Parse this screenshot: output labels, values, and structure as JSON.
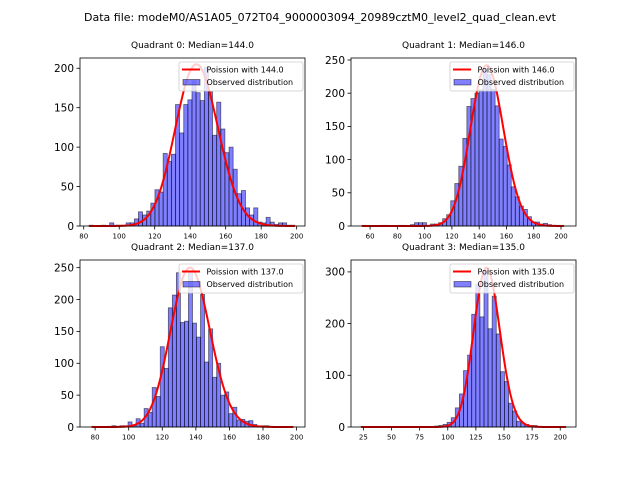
{
  "figure": {
    "title": "Data file: modeM0/AS1A05_072T04_9000003094_20989cztM0_level2_quad_clean.evt"
  },
  "chart_data": [
    {
      "type": "bar",
      "title": "Quadrant 0: Median=144.0",
      "median": 144.0,
      "xlabel": "",
      "ylabel": "",
      "xlim": [
        77.9,
        204.7
      ],
      "ylim": [
        0,
        213
      ],
      "xticks": [
        80,
        100,
        120,
        140,
        160,
        180,
        200
      ],
      "yticks": [
        0,
        50,
        100,
        150,
        200
      ],
      "grid": false,
      "legend_position": "top-right",
      "series": [
        {
          "name": "Observed distribution",
          "kind": "histogram",
          "color": "#0000ff",
          "bin_start": 83.0,
          "bin_width": 2.32,
          "counts": [
            1,
            0,
            0,
            1,
            0,
            4,
            1,
            1,
            1,
            4,
            4,
            9,
            18,
            14,
            19,
            29,
            46,
            43,
            92,
            82,
            91,
            154,
            118,
            154,
            160,
            184,
            169,
            159,
            201,
            170,
            115,
            157,
            123,
            93,
            100,
            72,
            41,
            45,
            23,
            14,
            23,
            5,
            4,
            11,
            5,
            2,
            4,
            4,
            1,
            1
          ]
        },
        {
          "name": "Poission with 144.0",
          "kind": "poisson-curve",
          "color": "#ff0000",
          "mean": 144.0,
          "peak": 205,
          "x_range": [
            83,
            199
          ]
        }
      ]
    },
    {
      "type": "bar",
      "title": "Quadrant 1: Median=146.0",
      "median": 146.0,
      "xlabel": "",
      "ylabel": "",
      "xlim": [
        46,
        211
      ],
      "ylim": [
        0,
        253
      ],
      "xticks": [
        60,
        80,
        100,
        120,
        140,
        160,
        180,
        200
      ],
      "yticks": [
        0,
        50,
        100,
        150,
        200,
        250
      ],
      "grid": false,
      "legend_position": "top-right",
      "series": [
        {
          "name": "Observed distribution",
          "kind": "histogram",
          "color": "#0000ff",
          "bin_start": 54.0,
          "bin_width": 2.96,
          "counts": [
            1,
            0,
            0,
            0,
            0,
            1,
            0,
            0,
            0,
            1,
            1,
            0,
            2,
            5,
            5,
            5,
            1,
            3,
            3,
            5,
            11,
            17,
            38,
            64,
            90,
            132,
            180,
            192,
            200,
            205,
            237,
            228,
            206,
            181,
            131,
            120,
            92,
            59,
            44,
            30,
            25,
            14,
            6,
            6,
            3,
            4,
            2,
            1,
            1,
            1
          ]
        },
        {
          "name": "Poission with 146.0",
          "kind": "poisson-curve",
          "color": "#ff0000",
          "mean": 146.0,
          "peak": 242,
          "x_range": [
            54,
            202
          ]
        }
      ]
    },
    {
      "type": "bar",
      "title": "Quadrant 2: Median=137.0",
      "median": 137.0,
      "xlabel": "",
      "ylabel": "",
      "xlim": [
        71,
        205
      ],
      "ylim": [
        0,
        262
      ],
      "xticks": [
        80,
        100,
        120,
        140,
        160,
        180,
        200
      ],
      "yticks": [
        0,
        50,
        100,
        150,
        200,
        250
      ],
      "grid": false,
      "legend_position": "top-right",
      "series": [
        {
          "name": "Observed distribution",
          "kind": "histogram",
          "color": "#0000ff",
          "bin_start": 78.0,
          "bin_width": 2.4,
          "counts": [
            1,
            0,
            0,
            0,
            1,
            2,
            1,
            2,
            2,
            8,
            3,
            13,
            6,
            29,
            23,
            62,
            48,
            126,
            92,
            187,
            207,
            242,
            164,
            166,
            245,
            163,
            141,
            208,
            102,
            154,
            78,
            100,
            50,
            55,
            21,
            31,
            11,
            12,
            9,
            10,
            4,
            1,
            2,
            2,
            1,
            0,
            0,
            0,
            0,
            1
          ]
        },
        {
          "name": "Poission with 137.0",
          "kind": "poisson-curve",
          "color": "#ff0000",
          "mean": 137.0,
          "peak": 250,
          "x_range": [
            78,
            198
          ]
        }
      ]
    },
    {
      "type": "bar",
      "title": "Quadrant 3: Median=135.0",
      "median": 135.0,
      "xlabel": "",
      "ylabel": "",
      "xlim": [
        14,
        214
      ],
      "ylim": [
        0,
        323
      ],
      "xticks": [
        25,
        50,
        75,
        100,
        125,
        150,
        175,
        200
      ],
      "yticks": [
        0,
        100,
        200,
        300
      ],
      "grid": false,
      "legend_position": "top-right",
      "series": [
        {
          "name": "Observed distribution",
          "kind": "histogram",
          "color": "#0000ff",
          "bin_start": 23.0,
          "bin_width": 3.64,
          "counts": [
            1,
            0,
            1,
            0,
            0,
            0,
            0,
            0,
            0,
            0,
            0,
            0,
            0,
            1,
            0,
            0,
            0,
            1,
            2,
            3,
            5,
            9,
            18,
            37,
            64,
            109,
            139,
            218,
            276,
            213,
            302,
            190,
            253,
            180,
            107,
            88,
            46,
            31,
            11,
            8,
            5,
            3,
            3,
            1,
            1,
            0,
            0,
            0,
            0,
            1
          ]
        },
        {
          "name": "Poission with 135.0",
          "kind": "poisson-curve",
          "color": "#ff0000",
          "mean": 135.0,
          "peak": 308,
          "x_range": [
            23,
            205
          ]
        }
      ]
    }
  ]
}
